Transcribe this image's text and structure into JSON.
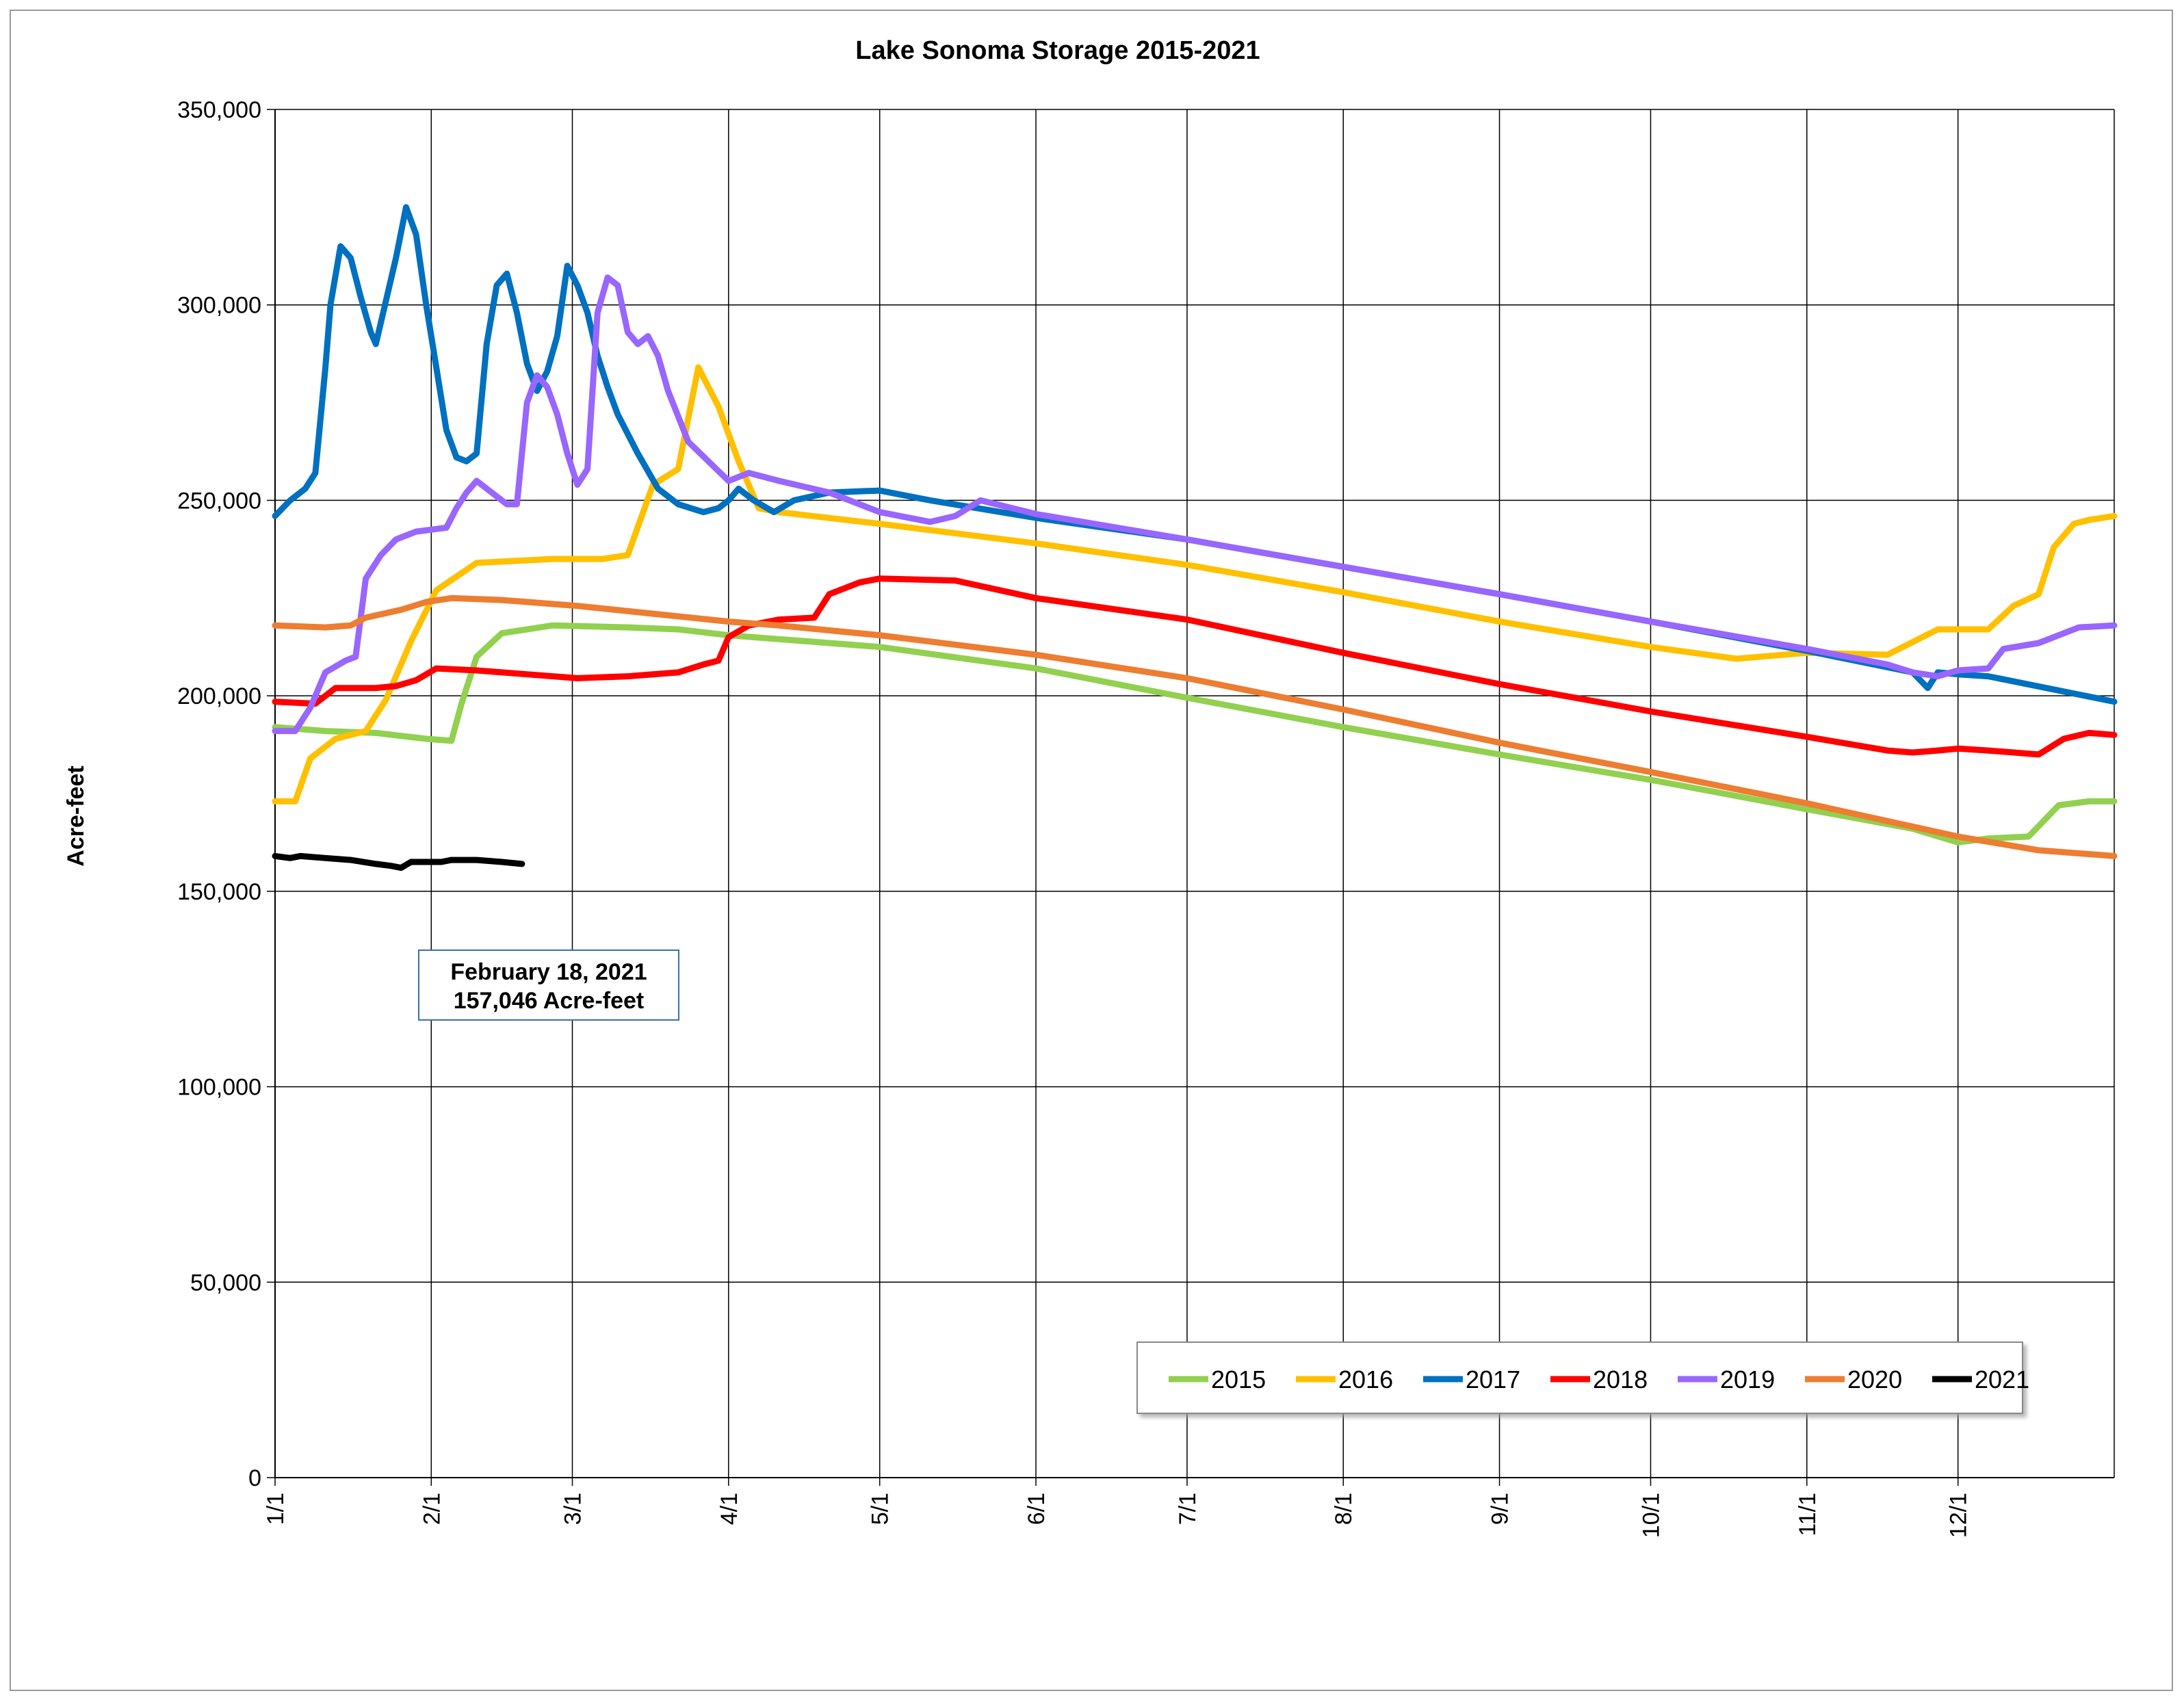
{
  "chart_data": {
    "type": "line",
    "title": "Lake Sonoma Storage 2015-2021",
    "xlabel": "",
    "ylabel": "Acre-feet",
    "xlim": [
      0,
      365
    ],
    "ylim": [
      0,
      350000
    ],
    "y_ticks": [
      0,
      50000,
      100000,
      150000,
      200000,
      250000,
      300000,
      350000
    ],
    "y_tick_labels": [
      "0",
      "50,000",
      "100,000",
      "150,000",
      "200,000",
      "250,000",
      "300,000",
      "350,000"
    ],
    "x_ticks": [
      0,
      31,
      59,
      90,
      120,
      151,
      181,
      212,
      243,
      273,
      304,
      334
    ],
    "x_tick_labels": [
      "1/1",
      "2/1",
      "3/1",
      "4/1",
      "5/1",
      "6/1",
      "7/1",
      "8/1",
      "9/1",
      "10/1",
      "11/1",
      "12/1"
    ],
    "x_unit": "day of year",
    "grid": true,
    "legend_position": "bottom-right",
    "annotation": {
      "lines": [
        "February 18, 2021",
        "157,046 Acre-feet"
      ],
      "color": "#3a6fb0"
    },
    "series": [
      {
        "name": "2015",
        "color": "#92d050",
        "points": [
          [
            0,
            192000
          ],
          [
            10,
            191000
          ],
          [
            20,
            190500
          ],
          [
            30,
            189000
          ],
          [
            35,
            188500
          ],
          [
            37,
            198000
          ],
          [
            40,
            210000
          ],
          [
            45,
            216000
          ],
          [
            55,
            218000
          ],
          [
            70,
            217500
          ],
          [
            80,
            217000
          ],
          [
            90,
            215500
          ],
          [
            100,
            214500
          ],
          [
            120,
            212500
          ],
          [
            151,
            207000
          ],
          [
            181,
            199500
          ],
          [
            212,
            192000
          ],
          [
            243,
            185000
          ],
          [
            273,
            178500
          ],
          [
            304,
            171000
          ],
          [
            325,
            166000
          ],
          [
            334,
            162500
          ],
          [
            340,
            163500
          ],
          [
            348,
            164000
          ],
          [
            354,
            172000
          ],
          [
            360,
            173000
          ],
          [
            365,
            173000
          ]
        ]
      },
      {
        "name": "2016",
        "color": "#ffc000",
        "points": [
          [
            0,
            173000
          ],
          [
            4,
            173000
          ],
          [
            7,
            184000
          ],
          [
            12,
            189000
          ],
          [
            18,
            191000
          ],
          [
            22,
            199000
          ],
          [
            27,
            214000
          ],
          [
            32,
            227000
          ],
          [
            40,
            234000
          ],
          [
            55,
            235000
          ],
          [
            65,
            235000
          ],
          [
            70,
            236000
          ],
          [
            75,
            254000
          ],
          [
            80,
            258000
          ],
          [
            84,
            284000
          ],
          [
            88,
            274000
          ],
          [
            92,
            260000
          ],
          [
            96,
            248000
          ],
          [
            100,
            247000
          ],
          [
            120,
            244000
          ],
          [
            151,
            239000
          ],
          [
            181,
            233500
          ],
          [
            212,
            226500
          ],
          [
            243,
            219000
          ],
          [
            273,
            212500
          ],
          [
            290,
            209500
          ],
          [
            304,
            211000
          ],
          [
            320,
            210500
          ],
          [
            330,
            217000
          ],
          [
            340,
            217000
          ],
          [
            345,
            223000
          ],
          [
            350,
            226000
          ],
          [
            353,
            238000
          ],
          [
            357,
            244000
          ],
          [
            360,
            245000
          ],
          [
            365,
            246000
          ]
        ]
      },
      {
        "name": "2017",
        "color": "#0070c0",
        "points": [
          [
            0,
            246000
          ],
          [
            3,
            250000
          ],
          [
            6,
            253000
          ],
          [
            8,
            257000
          ],
          [
            10,
            284000
          ],
          [
            11,
            300000
          ],
          [
            13,
            315000
          ],
          [
            15,
            312000
          ],
          [
            17,
            302000
          ],
          [
            19,
            293000
          ],
          [
            20,
            290000
          ],
          [
            22,
            301000
          ],
          [
            24,
            312000
          ],
          [
            26,
            325000
          ],
          [
            28,
            318000
          ],
          [
            30,
            300000
          ],
          [
            32,
            284000
          ],
          [
            34,
            268000
          ],
          [
            36,
            261000
          ],
          [
            38,
            260000
          ],
          [
            40,
            262000
          ],
          [
            42,
            290000
          ],
          [
            44,
            305000
          ],
          [
            46,
            308000
          ],
          [
            48,
            298000
          ],
          [
            50,
            285000
          ],
          [
            52,
            278000
          ],
          [
            54,
            283000
          ],
          [
            56,
            292000
          ],
          [
            58,
            310000
          ],
          [
            60,
            305000
          ],
          [
            62,
            298000
          ],
          [
            64,
            287000
          ],
          [
            66,
            279000
          ],
          [
            68,
            272000
          ],
          [
            72,
            262000
          ],
          [
            76,
            253000
          ],
          [
            80,
            249000
          ],
          [
            85,
            247000
          ],
          [
            88,
            248000
          ],
          [
            90,
            250000
          ],
          [
            92,
            253000
          ],
          [
            95,
            250000
          ],
          [
            99,
            247000
          ],
          [
            103,
            250000
          ],
          [
            110,
            252000
          ],
          [
            120,
            252500
          ],
          [
            130,
            250000
          ],
          [
            151,
            245500
          ],
          [
            181,
            240000
          ],
          [
            212,
            233000
          ],
          [
            243,
            226000
          ],
          [
            273,
            219000
          ],
          [
            304,
            211500
          ],
          [
            325,
            206000
          ],
          [
            328,
            202000
          ],
          [
            330,
            206000
          ],
          [
            334,
            205500
          ],
          [
            340,
            205000
          ],
          [
            365,
            198500
          ]
        ]
      },
      {
        "name": "2018",
        "color": "#ff0000",
        "points": [
          [
            0,
            198500
          ],
          [
            8,
            198000
          ],
          [
            12,
            202000
          ],
          [
            20,
            202000
          ],
          [
            24,
            202500
          ],
          [
            28,
            204000
          ],
          [
            32,
            207000
          ],
          [
            40,
            206500
          ],
          [
            50,
            205500
          ],
          [
            60,
            204500
          ],
          [
            70,
            205000
          ],
          [
            80,
            206000
          ],
          [
            85,
            208000
          ],
          [
            88,
            209000
          ],
          [
            90,
            215000
          ],
          [
            94,
            218000
          ],
          [
            100,
            219500
          ],
          [
            107,
            220000
          ],
          [
            110,
            226000
          ],
          [
            116,
            229000
          ],
          [
            120,
            230000
          ],
          [
            135,
            229500
          ],
          [
            151,
            225000
          ],
          [
            181,
            219500
          ],
          [
            212,
            211000
          ],
          [
            243,
            203000
          ],
          [
            273,
            196000
          ],
          [
            304,
            189500
          ],
          [
            320,
            186000
          ],
          [
            325,
            185500
          ],
          [
            330,
            186000
          ],
          [
            334,
            186500
          ],
          [
            340,
            186000
          ],
          [
            350,
            185000
          ],
          [
            355,
            189000
          ],
          [
            360,
            190500
          ],
          [
            365,
            190000
          ]
        ]
      },
      {
        "name": "2019",
        "color": "#9966ff",
        "points": [
          [
            0,
            191000
          ],
          [
            4,
            191000
          ],
          [
            7,
            197000
          ],
          [
            10,
            206000
          ],
          [
            14,
            209000
          ],
          [
            16,
            210000
          ],
          [
            18,
            230000
          ],
          [
            21,
            236000
          ],
          [
            24,
            240000
          ],
          [
            28,
            242000
          ],
          [
            34,
            243000
          ],
          [
            36,
            248000
          ],
          [
            38,
            252000
          ],
          [
            40,
            255000
          ],
          [
            43,
            252000
          ],
          [
            46,
            249000
          ],
          [
            48,
            249000
          ],
          [
            50,
            275000
          ],
          [
            52,
            282000
          ],
          [
            54,
            279000
          ],
          [
            56,
            272000
          ],
          [
            58,
            262000
          ],
          [
            60,
            254000
          ],
          [
            62,
            258000
          ],
          [
            64,
            298000
          ],
          [
            66,
            307000
          ],
          [
            68,
            305000
          ],
          [
            70,
            293000
          ],
          [
            72,
            290000
          ],
          [
            74,
            292000
          ],
          [
            76,
            287000
          ],
          [
            78,
            278000
          ],
          [
            82,
            265000
          ],
          [
            86,
            260000
          ],
          [
            90,
            255000
          ],
          [
            94,
            257000
          ],
          [
            100,
            255000
          ],
          [
            110,
            252000
          ],
          [
            120,
            247000
          ],
          [
            130,
            244500
          ],
          [
            135,
            246000
          ],
          [
            140,
            250000
          ],
          [
            151,
            246500
          ],
          [
            181,
            240000
          ],
          [
            212,
            233000
          ],
          [
            243,
            226000
          ],
          [
            273,
            219000
          ],
          [
            304,
            212000
          ],
          [
            320,
            208000
          ],
          [
            325,
            206000
          ],
          [
            330,
            205000
          ],
          [
            334,
            206500
          ],
          [
            340,
            207000
          ],
          [
            343,
            212000
          ],
          [
            350,
            213500
          ],
          [
            355,
            216000
          ],
          [
            358,
            217500
          ],
          [
            365,
            218000
          ]
        ]
      },
      {
        "name": "2020",
        "color": "#ed7d31",
        "points": [
          [
            0,
            218000
          ],
          [
            10,
            217500
          ],
          [
            15,
            218000
          ],
          [
            18,
            220000
          ],
          [
            25,
            222000
          ],
          [
            30,
            224000
          ],
          [
            35,
            225000
          ],
          [
            45,
            224500
          ],
          [
            60,
            223000
          ],
          [
            75,
            221000
          ],
          [
            90,
            219000
          ],
          [
            100,
            218000
          ],
          [
            120,
            215500
          ],
          [
            151,
            210500
          ],
          [
            181,
            204500
          ],
          [
            212,
            196500
          ],
          [
            243,
            188000
          ],
          [
            273,
            180500
          ],
          [
            304,
            172500
          ],
          [
            334,
            164000
          ],
          [
            350,
            160500
          ],
          [
            365,
            159000
          ]
        ]
      },
      {
        "name": "2021",
        "color": "#000000",
        "points": [
          [
            0,
            159000
          ],
          [
            3,
            158500
          ],
          [
            5,
            159000
          ],
          [
            10,
            158500
          ],
          [
            15,
            158000
          ],
          [
            20,
            157000
          ],
          [
            23,
            156500
          ],
          [
            25,
            156000
          ],
          [
            27,
            157500
          ],
          [
            33,
            157500
          ],
          [
            35,
            158000
          ],
          [
            40,
            158000
          ],
          [
            45,
            157500
          ],
          [
            49,
            157000
          ]
        ]
      }
    ]
  }
}
